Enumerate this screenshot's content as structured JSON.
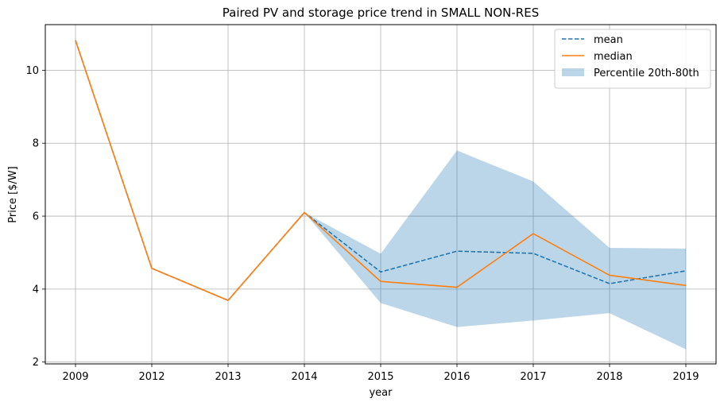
{
  "chart_data": {
    "type": "line",
    "title": "Paired PV and storage price trend in SMALL NON-RES",
    "xlabel": "year",
    "ylabel": "Price [$/W]",
    "categories": [
      "2009",
      "2012",
      "2013",
      "2014",
      "2015",
      "2016",
      "2017",
      "2018",
      "2019"
    ],
    "yticks": [
      2,
      4,
      6,
      8,
      10
    ],
    "ylim": [
      1.95,
      11.25
    ],
    "grid": true,
    "legend_position": "top-right",
    "series": [
      {
        "name": "mean",
        "style": "dashed",
        "color": "#1f77b4",
        "values": [
          10.82,
          4.57,
          3.69,
          6.1,
          4.47,
          5.04,
          4.98,
          4.15,
          4.5
        ]
      },
      {
        "name": "median",
        "style": "solid",
        "color": "#ff7f0e",
        "values": [
          10.82,
          4.57,
          3.69,
          6.1,
          4.21,
          4.05,
          5.52,
          4.38,
          4.1
        ]
      }
    ],
    "band": {
      "name": "Percentile 20th-80th",
      "color": "#1f77b4",
      "opacity": 0.3,
      "lower": [
        10.82,
        4.57,
        3.69,
        6.1,
        3.62,
        2.96,
        3.14,
        3.34,
        2.35
      ],
      "upper": [
        10.82,
        4.57,
        3.69,
        6.1,
        4.97,
        7.8,
        6.95,
        5.13,
        5.11
      ]
    }
  }
}
